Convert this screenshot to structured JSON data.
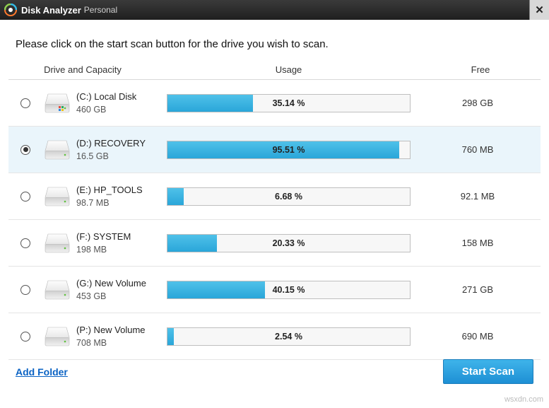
{
  "window": {
    "title_main": "Disk Analyzer",
    "title_sub": "Personal"
  },
  "instruction": "Please click on the start scan button for the drive you wish to scan.",
  "columns": {
    "drive": "Drive and Capacity",
    "usage": "Usage",
    "free": "Free"
  },
  "bar_color": "#2aa6d9",
  "selected_bg": "#eaf5fb",
  "drives": [
    {
      "name": "(C:)  Local Disk",
      "capacity": "460 GB",
      "usage_pct": 35.14,
      "usage_label": "35.14 %",
      "free": "298 GB",
      "selected": false
    },
    {
      "name": "(D:)  RECOVERY",
      "capacity": "16.5 GB",
      "usage_pct": 95.51,
      "usage_label": "95.51 %",
      "free": "760 MB",
      "selected": true
    },
    {
      "name": "(E:)  HP_TOOLS",
      "capacity": "98.7 MB",
      "usage_pct": 6.68,
      "usage_label": "6.68 %",
      "free": "92.1 MB",
      "selected": false
    },
    {
      "name": "(F:)  SYSTEM",
      "capacity": "198 MB",
      "usage_pct": 20.33,
      "usage_label": "20.33 %",
      "free": "158 MB",
      "selected": false
    },
    {
      "name": "(G:)  New Volume",
      "capacity": "453 GB",
      "usage_pct": 40.15,
      "usage_label": "40.15 %",
      "free": "271 GB",
      "selected": false
    },
    {
      "name": "(P:)  New Volume",
      "capacity": "708 MB",
      "usage_pct": 2.54,
      "usage_label": "2.54 %",
      "free": "690 MB",
      "selected": false
    }
  ],
  "footer": {
    "add_folder": "Add Folder",
    "start_scan": "Start Scan"
  },
  "watermark": "wsxdn.com"
}
